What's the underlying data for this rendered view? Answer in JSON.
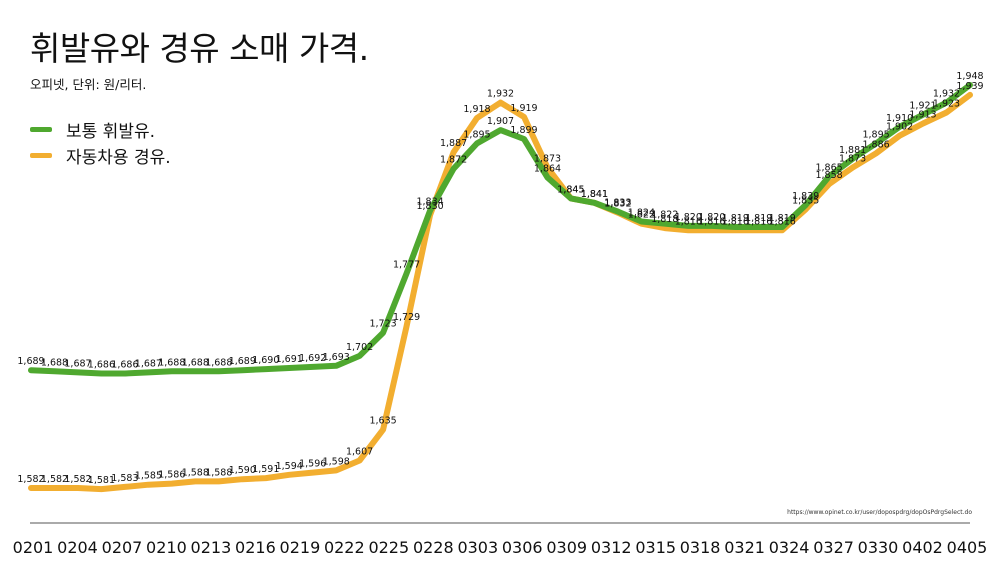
{
  "chart_data": {
    "type": "line",
    "title": "휘발유와 경유 소매 가격.",
    "subtitle": "오피넷, 단위: 원/리터.",
    "source": "https://www.opinet.co.kr/user/dopospdrg/dopOsPdrgSelect.do",
    "legend_position": "top-left",
    "grid": false,
    "colors": {
      "gasoline": "#4fa82f",
      "diesel": "#f2ae30"
    },
    "x_ticks": [
      "0201",
      "0204",
      "0207",
      "0210",
      "0213",
      "0216",
      "0219",
      "0222",
      "0225",
      "0228",
      "0303",
      "0306",
      "0309",
      "0312",
      "0315",
      "0318",
      "0321",
      "0324",
      "0327",
      "0330",
      "0402",
      "0405"
    ],
    "series": [
      {
        "name": "보통 휘발유.",
        "points": [
          [
            1,
            1689
          ],
          [
            2,
            1688
          ],
          [
            3,
            1687
          ],
          [
            4,
            1686
          ],
          [
            5,
            1686
          ],
          [
            6,
            1687
          ],
          [
            7,
            1688
          ],
          [
            8,
            1688
          ],
          [
            9,
            1688
          ],
          [
            10,
            1689
          ],
          [
            11,
            1690
          ],
          [
            12,
            1691
          ],
          [
            13,
            1692
          ],
          [
            14,
            1693
          ],
          [
            15,
            1702
          ],
          [
            16,
            1723
          ],
          [
            17,
            1777
          ],
          [
            18,
            1834
          ],
          [
            19,
            1872
          ],
          [
            20,
            1895
          ],
          [
            21,
            1907
          ],
          [
            22,
            1899
          ],
          [
            23,
            1864
          ],
          [
            24,
            1845
          ],
          [
            25,
            1841
          ],
          [
            26,
            1833
          ],
          [
            27,
            1824
          ],
          [
            28,
            1822
          ],
          [
            29,
            1820
          ],
          [
            30,
            1820
          ],
          [
            31,
            1819
          ],
          [
            32,
            1819
          ],
          [
            33,
            1819
          ],
          [
            34,
            1839
          ],
          [
            35,
            1865
          ],
          [
            36,
            1881
          ],
          [
            37,
            1895
          ],
          [
            38,
            1910
          ],
          [
            39,
            1921
          ],
          [
            40,
            1932
          ],
          [
            41,
            1948
          ]
        ],
        "labels": [
          "1,689",
          "1,688",
          "1,687",
          "1,686",
          "1,686",
          "1,687",
          "1,688",
          "1,688",
          "1,688",
          "1,689",
          "1,690",
          "1,691",
          "1,692",
          "1,693",
          "1,702",
          "1,723",
          "1,777",
          "1,834",
          "1,872",
          "1,895",
          "1,907",
          "1,899",
          "1,864",
          "1,845",
          "1,841",
          "1,833",
          "1,824",
          "1,822",
          "1,820",
          "1,820",
          "1,819",
          "1,819",
          "1,819",
          "1,839",
          "1,865",
          "1,881",
          "1,895",
          "1,910",
          "1,921",
          "1,932",
          "1,948"
        ]
      },
      {
        "name": "자동차용 경유.",
        "points": [
          [
            1,
            1582
          ],
          [
            2,
            1582
          ],
          [
            3,
            1582
          ],
          [
            4,
            1581
          ],
          [
            5,
            1583
          ],
          [
            6,
            1585
          ],
          [
            7,
            1586
          ],
          [
            8,
            1588
          ],
          [
            9,
            1588
          ],
          [
            10,
            1590
          ],
          [
            11,
            1591
          ],
          [
            12,
            1594
          ],
          [
            13,
            1596
          ],
          [
            14,
            1598
          ],
          [
            15,
            1607
          ],
          [
            16,
            1635
          ],
          [
            17,
            1729
          ],
          [
            18,
            1830
          ],
          [
            19,
            1887
          ],
          [
            20,
            1918
          ],
          [
            21,
            1932
          ],
          [
            22,
            1919
          ],
          [
            23,
            1873
          ],
          [
            24,
            1845
          ],
          [
            25,
            1841
          ],
          [
            26,
            1832
          ],
          [
            27,
            1822
          ],
          [
            28,
            1818
          ],
          [
            29,
            1816
          ],
          [
            30,
            1816
          ],
          [
            31,
            1816
          ],
          [
            32,
            1816
          ],
          [
            33,
            1816
          ],
          [
            34,
            1835
          ],
          [
            35,
            1858
          ],
          [
            36,
            1873
          ],
          [
            37,
            1886
          ],
          [
            38,
            1902
          ],
          [
            39,
            1913
          ],
          [
            40,
            1923
          ],
          [
            41,
            1939
          ]
        ],
        "labels": [
          "1,582",
          "1,582",
          "1,582",
          "1,581",
          "1,583",
          "1,585",
          "1,586",
          "1,588",
          "1,588",
          "1,590",
          "1,591",
          "1,594",
          "1,596",
          "1,598",
          "1,607",
          "1,635",
          "1,729",
          "1,830",
          "1,887",
          "1,918",
          "1,932",
          "1,919",
          "1,873",
          "1,845",
          "1,841",
          "1,832",
          "1,822",
          "1,818",
          "1,816",
          "1,816",
          "1,816",
          "1,816",
          "1,816",
          "1,835",
          "1,858",
          "1,873",
          "1,886",
          "1,902",
          "1,913",
          "1,923",
          "1,939"
        ]
      }
    ]
  }
}
